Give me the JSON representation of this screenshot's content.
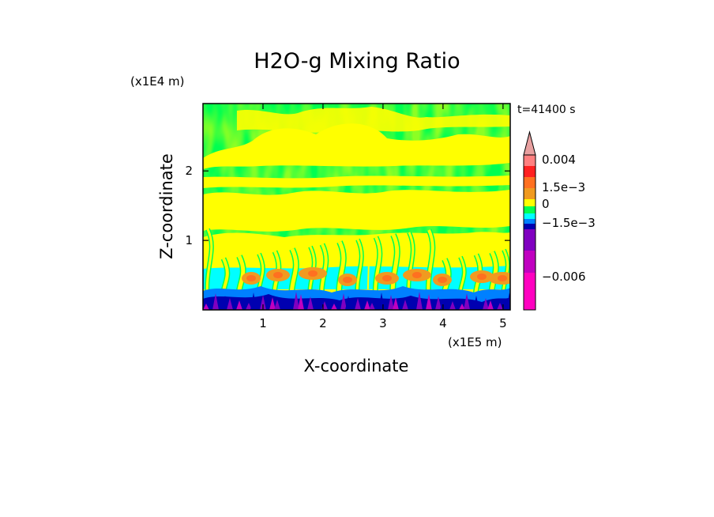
{
  "chart_data": {
    "type": "heatmap",
    "title": "H2O-g Mixing Ratio",
    "xlabel": "X-coordinate",
    "ylabel": "Z-coordinate",
    "x_unit": "(x1E5 m)",
    "y_unit": "(x1E4 m)",
    "time_label": "t=41400 s",
    "xlim": [
      0,
      5.12
    ],
    "ylim": [
      0,
      2.97
    ],
    "x_ticks": [
      1,
      2,
      3,
      4,
      5
    ],
    "y_ticks": [
      1,
      2
    ],
    "x_tick_labels": [
      "1",
      "2",
      "3",
      "4",
      "5"
    ],
    "y_tick_labels": [
      "1",
      "2"
    ],
    "colorbar": {
      "levels": [
        {
          "label": "",
          "color": "#e8a0a0"
        },
        {
          "label": "0.004",
          "color": "#ff8080"
        },
        {
          "label": "",
          "color": "#ff2020"
        },
        {
          "label": "",
          "color": "#ff7020"
        },
        {
          "label": "1.5e-3",
          "color": "#f09a20"
        },
        {
          "label": "",
          "color": "#ffff00"
        },
        {
          "label": "0",
          "color": "#00ff50"
        },
        {
          "label": "",
          "color": "#00ffff"
        },
        {
          "label": "",
          "color": "#0080ff"
        },
        {
          "label": "-1.5e-3",
          "color": "#0000b0"
        },
        {
          "label": "",
          "color": "#8000c0"
        },
        {
          "label": "",
          "color": "#c000c0"
        },
        {
          "label": "-0.006",
          "color": "#ff00c0"
        }
      ]
    }
  }
}
